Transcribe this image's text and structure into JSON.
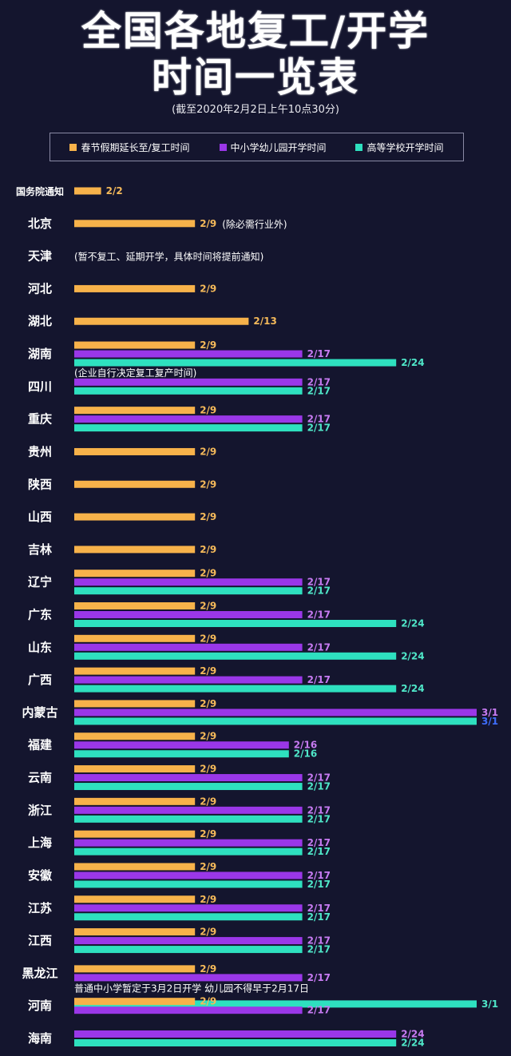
{
  "title_line1": "全国各地复工/开学",
  "title_line2": "时间一览表",
  "subtitle": "(截至2020年2月2日上午10点30分)",
  "legend": [
    {
      "label": "春节假期延长至/复工时间",
      "color": "#f7b24a"
    },
    {
      "label": "中小学幼儿园开学时间",
      "color": "#9a37e8"
    },
    {
      "label": "高等学校开学时间",
      "color": "#2ee0bf"
    }
  ],
  "colors": {
    "background": "#14152e",
    "work": "#f7b24a",
    "school": "#9a37e8",
    "univ": "#2ee0bf",
    "label_work": "#f4b95a",
    "label_school": "#c77bf2",
    "label_univ": "#4fe6c8",
    "label_alt_blue": "#3f6fff"
  },
  "chart_data": {
    "type": "bar",
    "orientation": "horizontal",
    "x_unit": "date",
    "series": [
      {
        "name": "春节假期延长至/复工时间"
      },
      {
        "name": "中小学幼儿园开学时间"
      },
      {
        "name": "高等学校开学时间"
      }
    ],
    "rows": [
      {
        "region": "国务院通知",
        "work": "2/2",
        "work_value": 2
      },
      {
        "region": "北京",
        "work": "2/9",
        "work_value": 9,
        "note": "(除必需行业外)"
      },
      {
        "region": "天津",
        "note": "(暂不复工、延期开学，具体时间将提前通知)"
      },
      {
        "region": "河北",
        "work": "2/9",
        "work_value": 9
      },
      {
        "region": "湖北",
        "work": "2/13",
        "work_value": 13
      },
      {
        "region": "湖南",
        "work": "2/9",
        "work_value": 9,
        "school": "2/17",
        "school_value": 17,
        "univ": "2/24",
        "univ_value": 24
      },
      {
        "region": "四川",
        "note": "(企业自行决定复工复产时间)",
        "school": "2/17",
        "school_value": 17,
        "univ": "2/17",
        "univ_value": 17
      },
      {
        "region": "重庆",
        "work": "2/9",
        "work_value": 9,
        "school": "2/17",
        "school_value": 17,
        "univ": "2/17",
        "univ_value": 17
      },
      {
        "region": "贵州",
        "work": "2/9",
        "work_value": 9
      },
      {
        "region": "陕西",
        "work": "2/9",
        "work_value": 9
      },
      {
        "region": "山西",
        "work": "2/9",
        "work_value": 9
      },
      {
        "region": "吉林",
        "work": "2/9",
        "work_value": 9
      },
      {
        "region": "辽宁",
        "work": "2/9",
        "work_value": 9,
        "school": "2/17",
        "school_value": 17,
        "univ": "2/17",
        "univ_value": 17
      },
      {
        "region": "广东",
        "work": "2/9",
        "work_value": 9,
        "school": "2/17",
        "school_value": 17,
        "univ": "2/24",
        "univ_value": 24
      },
      {
        "region": "山东",
        "work": "2/9",
        "work_value": 9,
        "school": "2/17",
        "school_value": 17,
        "univ": "2/24",
        "univ_value": 24
      },
      {
        "region": "广西",
        "work": "2/9",
        "work_value": 9,
        "school": "2/17",
        "school_value": 17,
        "univ": "2/24",
        "univ_value": 24
      },
      {
        "region": "内蒙古",
        "work": "2/9",
        "work_value": 9,
        "school": "3/1",
        "school_value": 30,
        "univ": "3/1",
        "univ_value": 30
      },
      {
        "region": "福建",
        "work": "2/9",
        "work_value": 9,
        "school": "2/16",
        "school_value": 16,
        "univ": "2/16",
        "univ_value": 16
      },
      {
        "region": "云南",
        "work": "2/9",
        "work_value": 9,
        "school": "2/17",
        "school_value": 17,
        "univ": "2/17",
        "univ_value": 17
      },
      {
        "region": "浙江",
        "work": "2/9",
        "work_value": 9,
        "school": "2/17",
        "school_value": 17,
        "univ": "2/17",
        "univ_value": 17
      },
      {
        "region": "上海",
        "work": "2/9",
        "work_value": 9,
        "school": "2/17",
        "school_value": 17,
        "univ": "2/17",
        "univ_value": 17
      },
      {
        "region": "安徽",
        "work": "2/9",
        "work_value": 9,
        "school": "2/17",
        "school_value": 17,
        "univ": "2/17",
        "univ_value": 17
      },
      {
        "region": "江苏",
        "work": "2/9",
        "work_value": 9,
        "school": "2/17",
        "school_value": 17,
        "univ": "2/17",
        "univ_value": 17
      },
      {
        "region": "江西",
        "work": "2/9",
        "work_value": 9,
        "school": "2/17",
        "school_value": 17,
        "univ": "2/17",
        "univ_value": 17
      },
      {
        "region": "黑龙江",
        "work": "2/9",
        "work_value": 9,
        "school": "2/17",
        "school_value": 17,
        "note": "普通中小学暂定于3月2日开学 幼儿园不得早于2月17日",
        "univ": "3/1",
        "univ_value": 30
      },
      {
        "region": "河南",
        "work": "2/9",
        "work_value": 9,
        "school": "2/17",
        "school_value": 17
      },
      {
        "region": "海南",
        "school": "2/24",
        "school_value": 24,
        "univ": "2/24",
        "univ_value": 24
      }
    ]
  }
}
